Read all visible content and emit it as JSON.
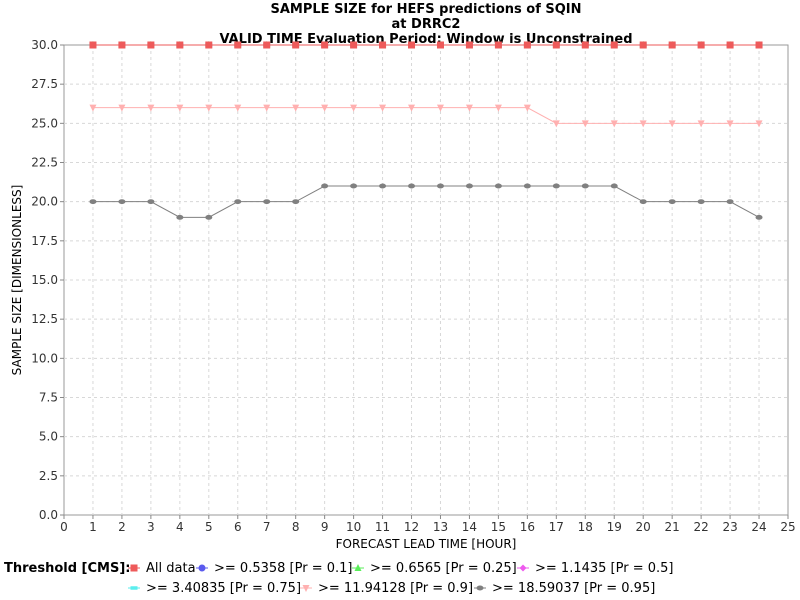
{
  "chart_data": {
    "type": "line",
    "title_lines": [
      "SAMPLE SIZE for HEFS predictions of SQIN",
      "at DRRC2",
      "VALID TIME Evaluation Period: Window is Unconstrained"
    ],
    "xlabel": "FORECAST LEAD TIME [HOUR]",
    "ylabel": "SAMPLE SIZE [DIMENSIONLESS]",
    "xlim": [
      0,
      25
    ],
    "ylim": [
      0,
      30
    ],
    "xticks": [
      "0",
      "1",
      "2",
      "3",
      "4",
      "5",
      "6",
      "7",
      "8",
      "9",
      "10",
      "11",
      "12",
      "13",
      "14",
      "15",
      "16",
      "17",
      "18",
      "19",
      "20",
      "21",
      "22",
      "23",
      "24",
      "25"
    ],
    "yticks": [
      "0.0",
      "2.5",
      "5.0",
      "7.5",
      "10.0",
      "12.5",
      "15.0",
      "17.5",
      "20.0",
      "22.5",
      "25.0",
      "27.5",
      "30.0"
    ],
    "grid": true,
    "legend_title": "Threshold [CMS]:",
    "legend_position": "bottom",
    "x": [
      1,
      2,
      3,
      4,
      5,
      6,
      7,
      8,
      9,
      10,
      11,
      12,
      13,
      14,
      15,
      16,
      17,
      18,
      19,
      20,
      21,
      22,
      23,
      24
    ],
    "series": [
      {
        "name": "All data",
        "color": "#ee5a5a",
        "marker": "square",
        "values": [
          30,
          30,
          30,
          30,
          30,
          30,
          30,
          30,
          30,
          30,
          30,
          30,
          30,
          30,
          30,
          30,
          30,
          30,
          30,
          30,
          30,
          30,
          30,
          30
        ]
      },
      {
        "name": ">= 0.5358 [Pr = 0.1]",
        "color": "#5a5aee",
        "marker": "circle",
        "values": [
          30,
          30,
          30,
          30,
          30,
          30,
          30,
          30,
          30,
          30,
          30,
          30,
          30,
          30,
          30,
          30,
          30,
          30,
          30,
          30,
          30,
          30,
          30,
          30
        ]
      },
      {
        "name": ">= 0.6565 [Pr = 0.25]",
        "color": "#5aee5a",
        "marker": "triangle-up",
        "values": [
          30,
          30,
          30,
          30,
          30,
          30,
          30,
          30,
          30,
          30,
          30,
          30,
          30,
          30,
          30,
          30,
          30,
          30,
          30,
          30,
          30,
          30,
          30,
          30
        ]
      },
      {
        "name": ">= 1.1435 [Pr = 0.5]",
        "color": "#ee5aee",
        "marker": "diamond",
        "values": [
          30,
          30,
          30,
          30,
          30,
          30,
          30,
          30,
          30,
          30,
          30,
          30,
          30,
          30,
          30,
          30,
          30,
          30,
          30,
          30,
          30,
          30,
          30,
          30
        ]
      },
      {
        "name": ">= 3.40835 [Pr = 0.75]",
        "color": "#5aeeee",
        "marker": "rect-h",
        "values": [
          30,
          30,
          30,
          30,
          30,
          30,
          30,
          30,
          30,
          30,
          30,
          30,
          30,
          30,
          30,
          30,
          30,
          30,
          30,
          30,
          30,
          30,
          30,
          30
        ]
      },
      {
        "name": ">= 11.94128 [Pr = 0.9]",
        "color": "#ffb0b0",
        "marker": "triangle-down",
        "values": [
          26,
          26,
          26,
          26,
          26,
          26,
          26,
          26,
          26,
          26,
          26,
          26,
          26,
          26,
          26,
          26,
          25,
          25,
          25,
          25,
          25,
          25,
          25,
          25
        ]
      },
      {
        "name": ">= 18.59037 [Pr = 0.95]",
        "color": "#808080",
        "marker": "ellipse",
        "values": [
          20,
          20,
          20,
          19,
          19,
          20,
          20,
          20,
          21,
          21,
          21,
          21,
          21,
          21,
          21,
          21,
          21,
          21,
          21,
          20,
          20,
          20,
          20,
          19
        ]
      }
    ]
  }
}
